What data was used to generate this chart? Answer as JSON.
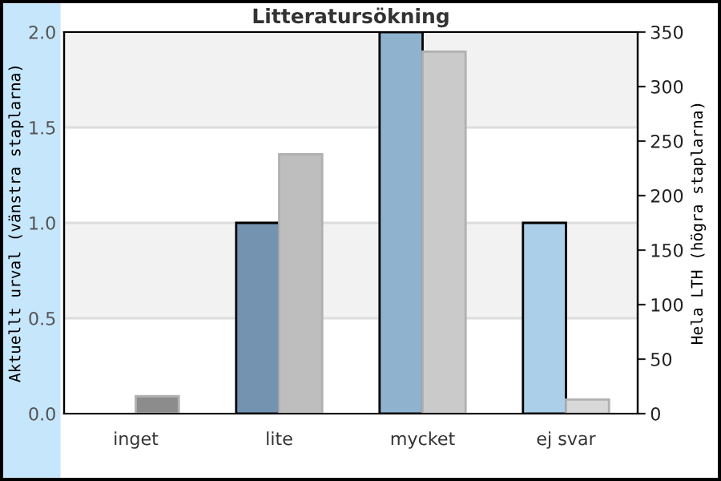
{
  "chart_data": {
    "type": "bar",
    "title": "Litteratursökning",
    "ylabel": "Aktuellt urval (vänstra staplarna)",
    "y2label": "Hela LTH (högra staplarna)",
    "categories": [
      "inget",
      "lite",
      "mycket",
      "ej svar"
    ],
    "series": [
      {
        "colors": [
          "#7393b0",
          "#7393b0",
          "#8fb2cf",
          "#abcee9"
        ],
        "values": [
          0,
          1.0,
          2.0,
          1.0
        ],
        "axis": "y"
      },
      {
        "colors": [
          "#8c8c8c",
          "#bebebe",
          "#cacaca",
          "#d8d8d8"
        ],
        "values": [
          16,
          238,
          332,
          13
        ],
        "axis": "y2"
      }
    ],
    "ylim": [
      0,
      2.0
    ],
    "yticks": [
      {
        "value": 0,
        "label": "0.0"
      },
      {
        "value": 0.5,
        "label": "0.5"
      },
      {
        "value": 1.0,
        "label": "1.0"
      },
      {
        "value": 1.5,
        "label": "1.5"
      },
      {
        "value": 2.0,
        "label": "2.0"
      }
    ],
    "y2lim": [
      0,
      350
    ],
    "y2ticks": [
      0,
      50,
      100,
      150,
      200,
      250,
      300,
      350
    ],
    "grid": "y"
  }
}
